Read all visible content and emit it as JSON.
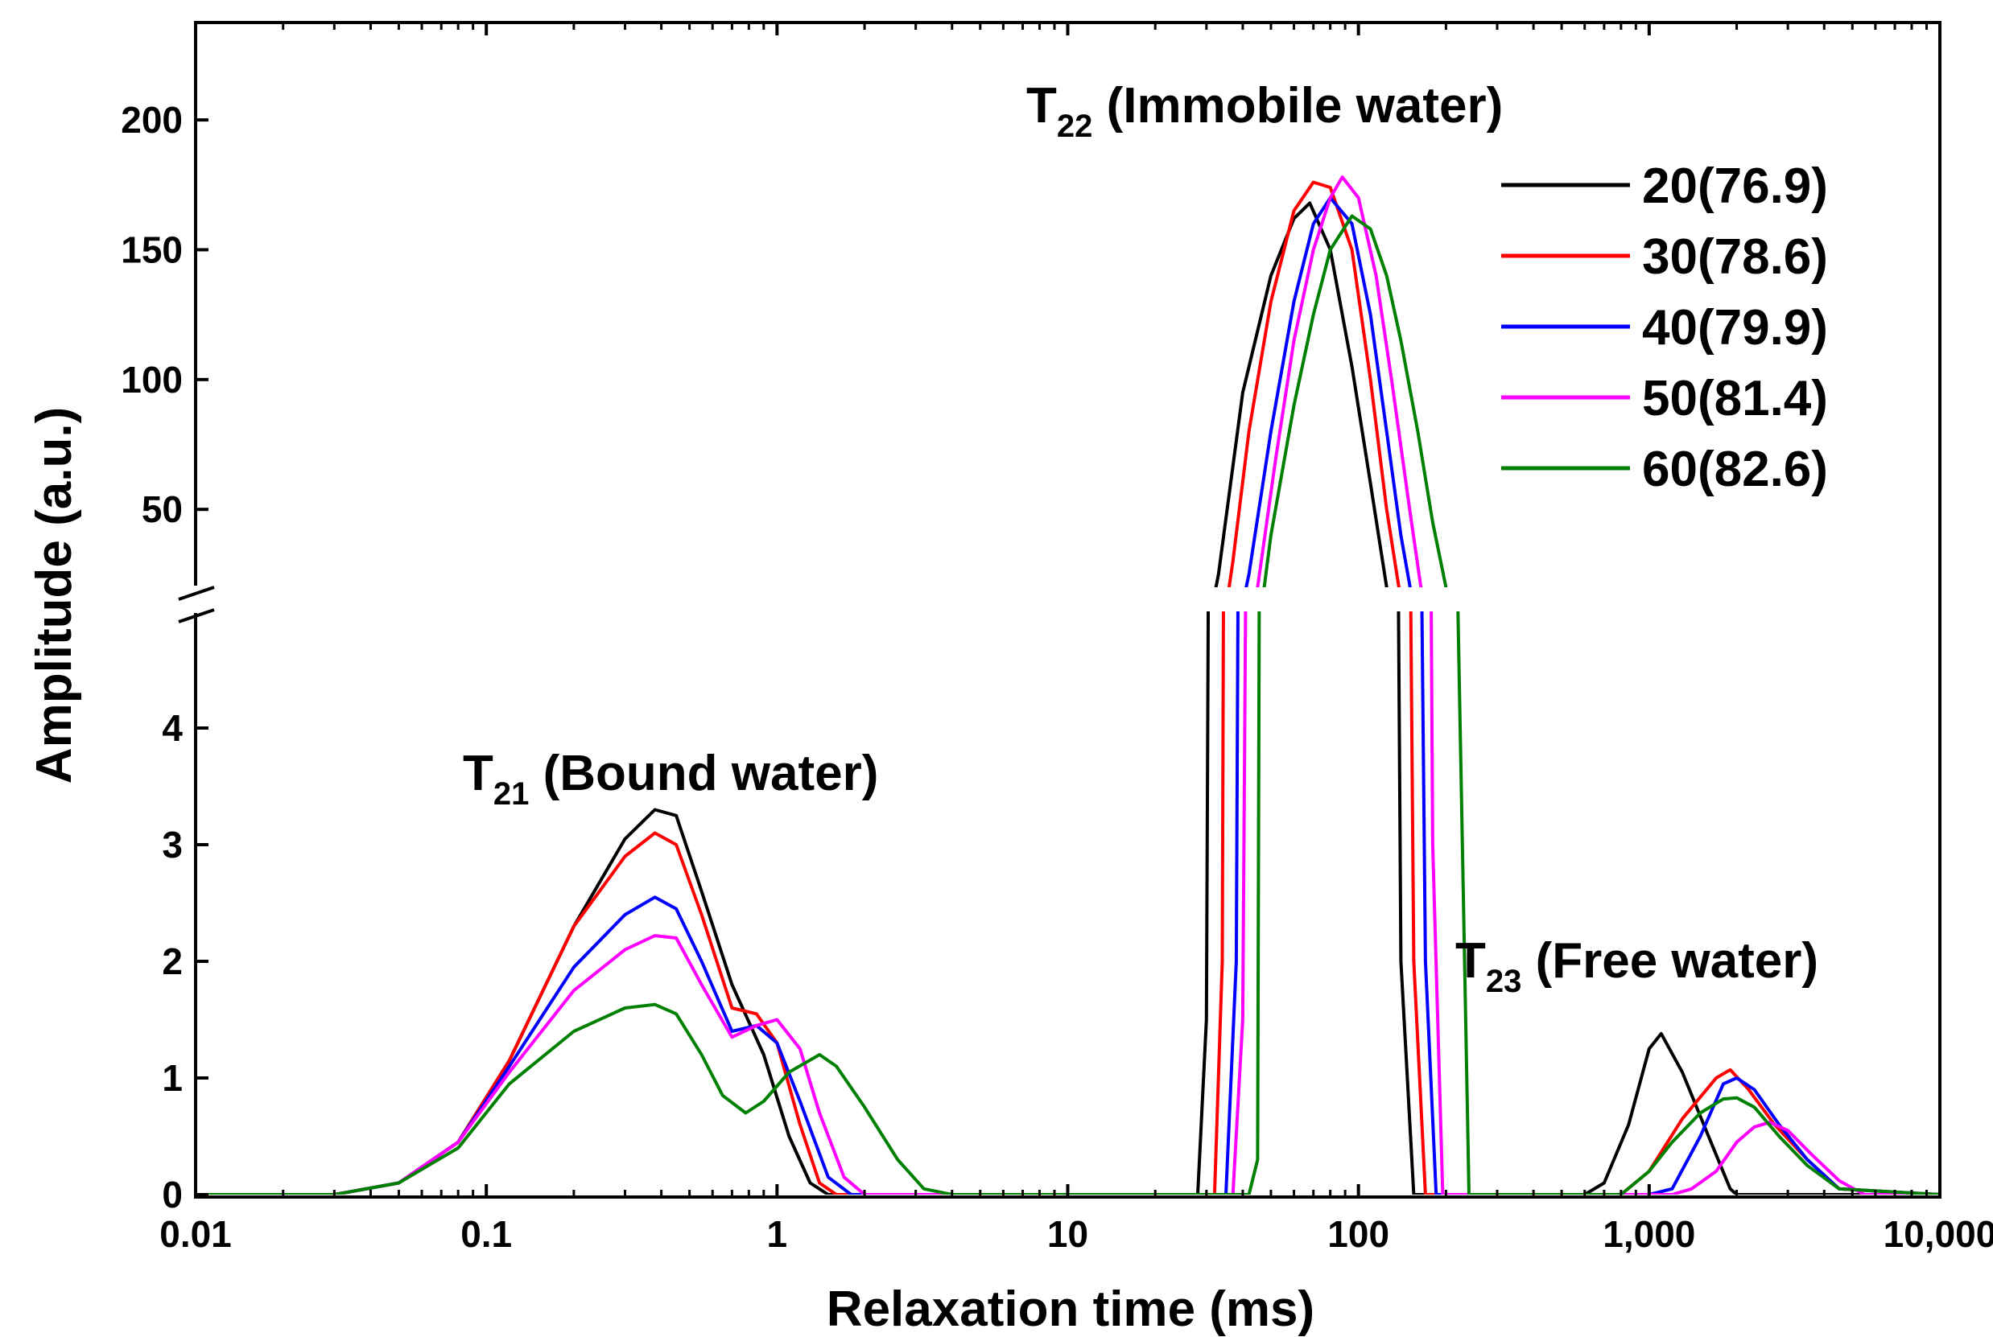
{
  "chart_data": {
    "type": "line",
    "title": "",
    "xlabel": "Relaxation time (ms)",
    "ylabel": "Amplitude (a.u.)",
    "xscale": "log",
    "xlim": [
      0.01,
      10000
    ],
    "y_axis_broken": true,
    "ylim_lower": [
      0,
      5
    ],
    "ylim_upper": [
      20,
      240
    ],
    "x_ticks": [
      {
        "value": 0.01,
        "label": "0.01"
      },
      {
        "value": 0.1,
        "label": "0.1"
      },
      {
        "value": 1,
        "label": "1"
      },
      {
        "value": 10,
        "label": "10"
      },
      {
        "value": 100,
        "label": "100"
      },
      {
        "value": 1000,
        "label": "1,000"
      },
      {
        "value": 10000,
        "label": "10,000"
      }
    ],
    "y_ticks_lower": [
      {
        "value": 0,
        "label": "0"
      },
      {
        "value": 1,
        "label": "1"
      },
      {
        "value": 2,
        "label": "2"
      },
      {
        "value": 3,
        "label": "3"
      },
      {
        "value": 4,
        "label": "4"
      }
    ],
    "y_ticks_upper": [
      {
        "value": 50,
        "label": "50"
      },
      {
        "value": 100,
        "label": "100"
      },
      {
        "value": 150,
        "label": "150"
      },
      {
        "value": 200,
        "label": "200"
      }
    ],
    "legend_position": "top-right",
    "annotations": [
      {
        "main": "T",
        "sub": "21",
        "rest": " (Bound water)"
      },
      {
        "main": "T",
        "sub": "22",
        "rest": " (Immobile water)"
      },
      {
        "main": "T",
        "sub": "23",
        "rest": " (Free water)"
      }
    ],
    "series": [
      {
        "name": "20(76.9)",
        "color": "#000000",
        "x": [
          0.01,
          0.03,
          0.05,
          0.08,
          0.12,
          0.2,
          0.3,
          0.38,
          0.45,
          0.55,
          0.7,
          0.9,
          1.1,
          1.3,
          1.5,
          2,
          28,
          30,
          33,
          40,
          50,
          60,
          68,
          80,
          95,
          110,
          125,
          140,
          155,
          400,
          600,
          700,
          850,
          1000,
          1100,
          1300,
          1600,
          1900,
          2000,
          10000
        ],
        "y": [
          0,
          0,
          0.1,
          0.45,
          1.15,
          2.3,
          3.05,
          3.3,
          3.25,
          2.6,
          1.8,
          1.2,
          0.5,
          0.1,
          0,
          0,
          0,
          1.5,
          25,
          95,
          140,
          162,
          168,
          150,
          105,
          60,
          20,
          2,
          0,
          0,
          0,
          0.1,
          0.6,
          1.25,
          1.38,
          1.05,
          0.5,
          0.05,
          0,
          0
        ]
      },
      {
        "name": "30(78.6)",
        "color": "#ff0000",
        "x": [
          0.01,
          0.03,
          0.05,
          0.08,
          0.12,
          0.2,
          0.3,
          0.38,
          0.45,
          0.55,
          0.7,
          0.85,
          1.0,
          1.2,
          1.4,
          1.6,
          2,
          32,
          34,
          37,
          42,
          50,
          60,
          70,
          80,
          95,
          110,
          125,
          140,
          155,
          170,
          500,
          800,
          1000,
          1300,
          1700,
          1900,
          2200,
          2700,
          3500,
          4500,
          10000
        ],
        "y": [
          0,
          0,
          0.1,
          0.45,
          1.15,
          2.3,
          2.9,
          3.1,
          3.0,
          2.4,
          1.6,
          1.55,
          1.3,
          0.6,
          0.1,
          0,
          0,
          0,
          2,
          30,
          80,
          130,
          165,
          176,
          174,
          150,
          100,
          50,
          15,
          2,
          0,
          0,
          0,
          0.2,
          0.65,
          1.0,
          1.07,
          0.9,
          0.6,
          0.3,
          0.05,
          0
        ]
      },
      {
        "name": "40(79.9)",
        "color": "#0000ff",
        "x": [
          0.01,
          0.03,
          0.05,
          0.08,
          0.12,
          0.2,
          0.3,
          0.38,
          0.45,
          0.55,
          0.7,
          0.85,
          1.0,
          1.2,
          1.5,
          1.8,
          2,
          35,
          38,
          42,
          50,
          60,
          70,
          80,
          95,
          110,
          125,
          140,
          155,
          170,
          185,
          500,
          1000,
          1200,
          1500,
          1800,
          2000,
          2300,
          2800,
          3500,
          4500,
          10000
        ],
        "y": [
          0,
          0,
          0.1,
          0.45,
          1.1,
          1.95,
          2.4,
          2.55,
          2.45,
          2.0,
          1.4,
          1.45,
          1.3,
          0.8,
          0.15,
          0,
          0,
          0,
          2,
          25,
          80,
          130,
          160,
          170,
          160,
          125,
          80,
          40,
          12,
          2,
          0,
          0,
          0,
          0.05,
          0.5,
          0.95,
          1.0,
          0.9,
          0.6,
          0.3,
          0.05,
          0
        ]
      },
      {
        "name": "50(81.4)",
        "color": "#ff00ff",
        "x": [
          0.01,
          0.03,
          0.05,
          0.08,
          0.12,
          0.2,
          0.3,
          0.38,
          0.45,
          0.55,
          0.7,
          0.85,
          1.0,
          1.2,
          1.4,
          1.7,
          2.0,
          2.2,
          37,
          40,
          45,
          52,
          60,
          70,
          80,
          88,
          100,
          115,
          130,
          150,
          165,
          180,
          195,
          500,
          1200,
          1400,
          1700,
          2000,
          2300,
          2600,
          3000,
          3600,
          4500,
          5500,
          10000
        ],
        "y": [
          0,
          0,
          0.1,
          0.45,
          1.05,
          1.75,
          2.1,
          2.22,
          2.2,
          1.8,
          1.35,
          1.45,
          1.5,
          1.25,
          0.7,
          0.15,
          0,
          0,
          0,
          1.5,
          20,
          70,
          115,
          150,
          170,
          178,
          170,
          140,
          100,
          50,
          18,
          3,
          0,
          0,
          0,
          0.05,
          0.2,
          0.45,
          0.58,
          0.62,
          0.55,
          0.35,
          0.12,
          0,
          0
        ]
      },
      {
        "name": "60(82.6)",
        "color": "#008000",
        "x": [
          0.01,
          0.03,
          0.05,
          0.08,
          0.12,
          0.2,
          0.3,
          0.38,
          0.45,
          0.55,
          0.65,
          0.78,
          0.9,
          1.1,
          1.4,
          1.6,
          2.0,
          2.6,
          3.2,
          4.0,
          42,
          45,
          50,
          60,
          70,
          80,
          95,
          110,
          125,
          140,
          160,
          180,
          200,
          220,
          240,
          500,
          800,
          1000,
          1200,
          1500,
          1800,
          2000,
          2300,
          2800,
          3500,
          4500,
          10000
        ],
        "y": [
          0,
          0,
          0.1,
          0.4,
          0.95,
          1.4,
          1.6,
          1.63,
          1.55,
          1.2,
          0.85,
          0.7,
          0.8,
          1.05,
          1.2,
          1.1,
          0.75,
          0.3,
          0.05,
          0,
          0,
          0.3,
          40,
          90,
          125,
          150,
          163,
          158,
          140,
          115,
          80,
          45,
          20,
          5,
          0,
          0,
          0,
          0.2,
          0.45,
          0.7,
          0.82,
          0.83,
          0.75,
          0.5,
          0.25,
          0.05,
          0
        ]
      }
    ]
  }
}
